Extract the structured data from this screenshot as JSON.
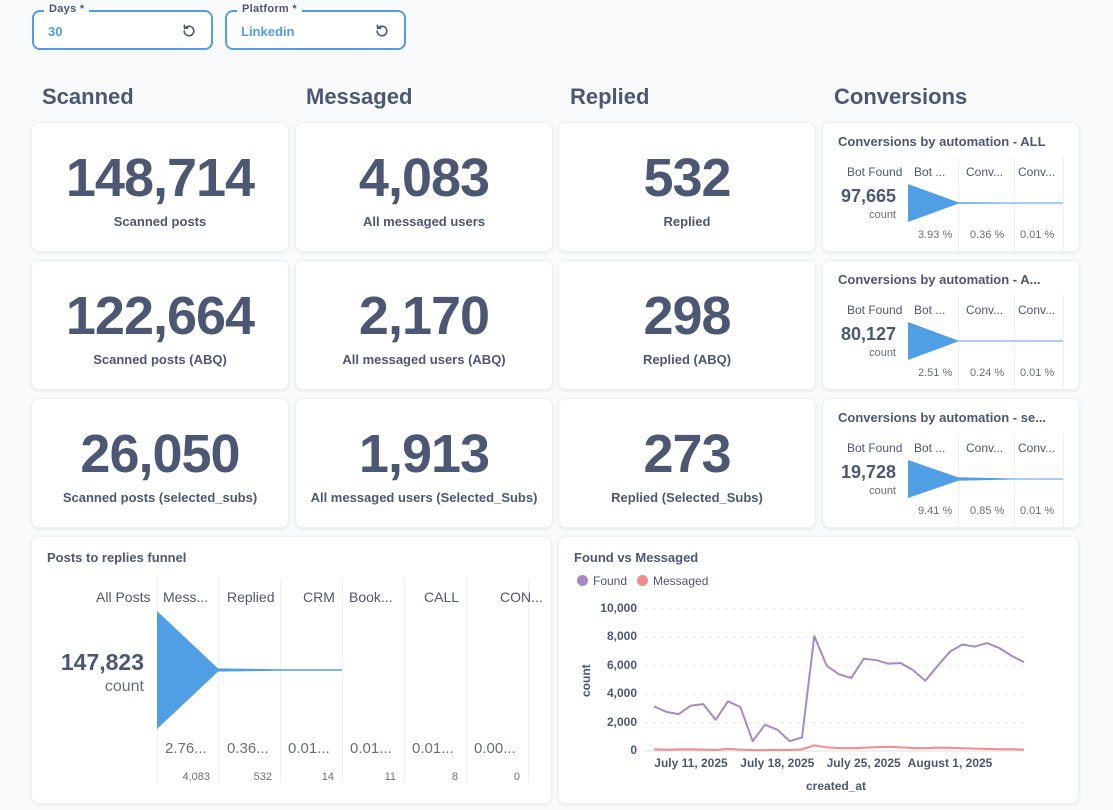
{
  "filters": [
    {
      "label": "Days *",
      "value": "30",
      "reset_icon": "reset-icon"
    },
    {
      "label": "Platform *",
      "value": "Linkedin",
      "reset_icon": "reset-icon"
    }
  ],
  "sections": [
    "Scanned",
    "Messaged",
    "Replied",
    "Conversions"
  ],
  "scalars": [
    {
      "value": "148,714",
      "label": "Scanned posts"
    },
    {
      "value": "4,083",
      "label": "All messaged users"
    },
    {
      "value": "532",
      "label": "Replied"
    },
    {
      "value": "122,664",
      "label": "Scanned posts (ABQ)"
    },
    {
      "value": "2,170",
      "label": "All messaged users (ABQ)"
    },
    {
      "value": "298",
      "label": "Replied (ABQ)"
    },
    {
      "value": "26,050",
      "label": "Scanned posts (selected_subs)"
    },
    {
      "value": "1,913",
      "label": "All messaged users (Selected_Subs)"
    },
    {
      "value": "273",
      "label": "Replied (Selected_Subs)"
    }
  ],
  "conversion_funnels": [
    {
      "title": "Conversions by automation - ALL",
      "headers": [
        "Bot Found",
        "Bot ...",
        "Conv...",
        "Conv..."
      ],
      "value": "97,665",
      "count_label": "count",
      "percents": [
        "3.93 %",
        "0.36 %",
        "0.01 %"
      ],
      "fractions": [
        1,
        0.0393,
        0.0036,
        0.0001
      ]
    },
    {
      "title": "Conversions by automation - A...",
      "headers": [
        "Bot Found",
        "Bot ...",
        "Conv...",
        "Conv..."
      ],
      "value": "80,127",
      "count_label": "count",
      "percents": [
        "2.51 %",
        "0.24 %",
        "0.01 %"
      ],
      "fractions": [
        1,
        0.0251,
        0.0024,
        0.0001
      ]
    },
    {
      "title": "Conversions by automation - se...",
      "headers": [
        "Bot Found",
        "Bot ...",
        "Conv...",
        "Conv..."
      ],
      "value": "19,728",
      "count_label": "count",
      "percents": [
        "9.41 %",
        "0.85 %",
        "0.01 %"
      ],
      "fractions": [
        1,
        0.0941,
        0.0085,
        0.0001
      ]
    }
  ],
  "posts_funnel": {
    "title": "Posts to replies funnel",
    "headers": [
      "All Posts",
      "Mess...",
      "Replied",
      "CRM",
      "Book...",
      "CALL",
      "CON..."
    ],
    "value": "147,823",
    "count_label": "count",
    "percents": [
      "2.76...",
      "0.36...",
      "0.01...",
      "0.01...",
      "0.01...",
      "0.00..."
    ],
    "counts": [
      "4,083",
      "532",
      "14",
      "11",
      "8",
      "0"
    ],
    "fractions": [
      1,
      0.0276,
      0.0036,
      0.0001,
      0.0001,
      0.0001,
      0
    ]
  },
  "line_chart": {
    "title": "Found vs Messaged",
    "legend": [
      {
        "name": "Found",
        "color": "#a989c5"
      },
      {
        "name": "Messaged",
        "color": "#ef8c8c"
      }
    ]
  },
  "chart_data": {
    "type": "line",
    "title": "Found vs Messaged",
    "xlabel": "created_at",
    "ylabel": "count",
    "ylim": [
      0,
      10000
    ],
    "yticks": [
      "10,000",
      "8,000",
      "6,000",
      "4,000",
      "2,000",
      "0"
    ],
    "ytick_values": [
      10000,
      8000,
      6000,
      4000,
      2000,
      0
    ],
    "xtick_labels": [
      "July 11, 2025",
      "July 18, 2025",
      "July 25, 2025",
      "August 1, 2025"
    ],
    "xtick_indices": [
      3,
      10,
      17,
      24
    ],
    "grid": true,
    "legend": "top-left",
    "series": [
      {
        "name": "Found",
        "color": "#a989c5",
        "values": [
          3150,
          2750,
          2600,
          3200,
          3300,
          2200,
          3500,
          3100,
          700,
          1850,
          1500,
          700,
          950,
          8100,
          6000,
          5400,
          5150,
          6500,
          6400,
          6150,
          6200,
          5700,
          4950,
          6000,
          7000,
          7500,
          7350,
          7600,
          7250,
          6700,
          6250
        ]
      },
      {
        "name": "Messaged",
        "color": "#ef8c8c",
        "values": [
          120,
          90,
          110,
          120,
          100,
          80,
          150,
          100,
          60,
          60,
          80,
          70,
          110,
          400,
          250,
          210,
          200,
          230,
          260,
          300,
          250,
          210,
          190,
          240,
          230,
          200,
          170,
          150,
          130,
          120,
          100
        ]
      }
    ]
  }
}
